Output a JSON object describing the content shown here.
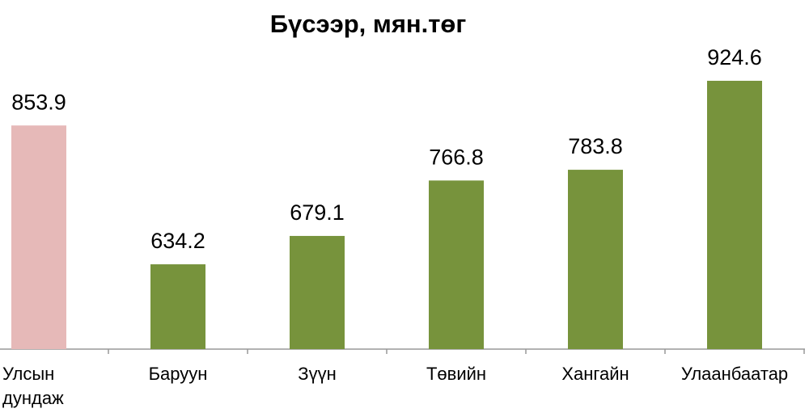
{
  "chart_data": {
    "type": "bar",
    "title": "Бүсээр, мян.төг",
    "categories": [
      "Улсын дундаж",
      "Баруун",
      "Зүүн",
      "Төвийн",
      "Хангайн",
      "Улаанбаатар"
    ],
    "values": [
      853.9,
      634.2,
      679.1,
      766.8,
      783.8,
      924.6
    ],
    "colors": [
      "#e6b9b8",
      "#77933c",
      "#77933c",
      "#77933c",
      "#77933c",
      "#77933c"
    ],
    "ylim": [
      500,
      1000
    ],
    "grid": false
  }
}
